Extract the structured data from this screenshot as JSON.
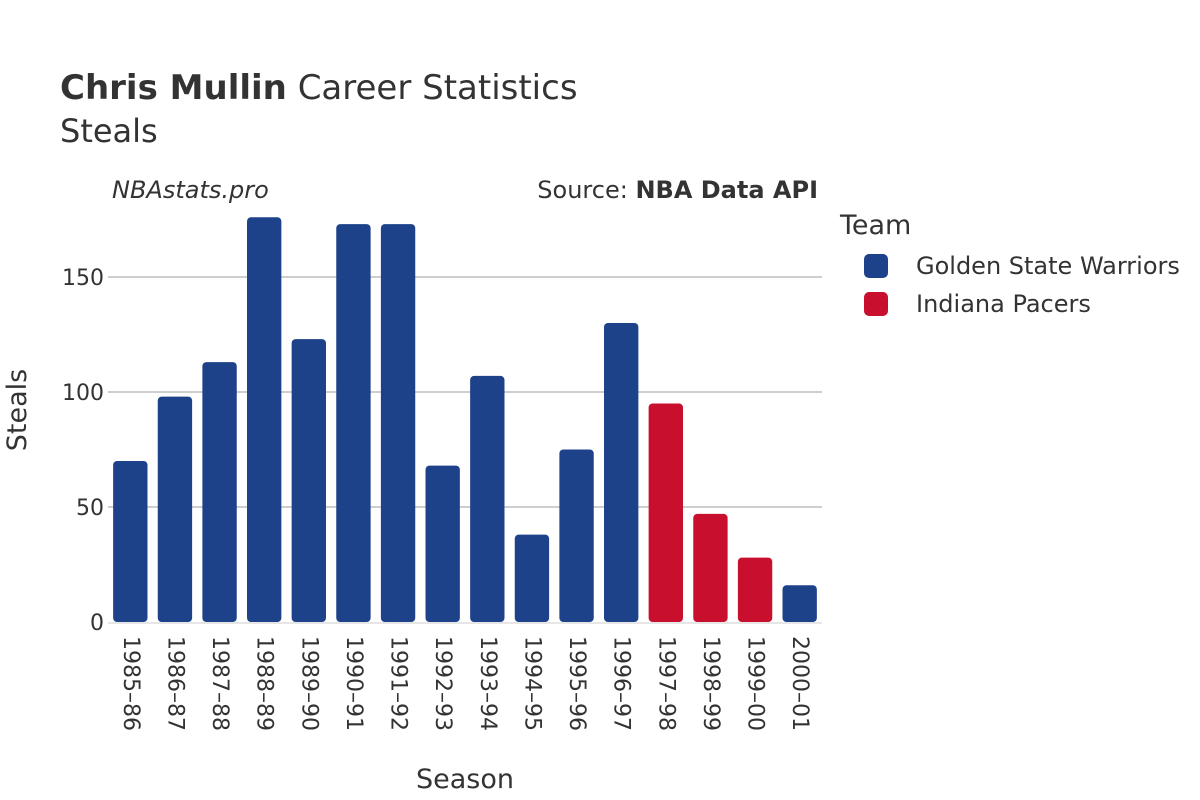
{
  "header": {
    "title_bold": "Chris Mullin",
    "title_rest": "Career Statistics",
    "subtitle": "Steals",
    "watermark": "NBAstats.pro",
    "source_prefix": "Source: ",
    "source_name": "NBA Data API"
  },
  "legend": {
    "title": "Team",
    "items": [
      {
        "label": "Golden State Warriors",
        "color": "#1d428a"
      },
      {
        "label": "Indiana Pacers",
        "color": "#c8102e"
      }
    ]
  },
  "chart_data": {
    "type": "bar",
    "title": "Chris Mullin Career Statistics",
    "subtitle": "Steals",
    "xlabel": "Season",
    "ylabel": "Steals",
    "ylim": [
      0,
      180
    ],
    "yticks": [
      0,
      50,
      100,
      150
    ],
    "grid": true,
    "legend_position": "right",
    "categories": [
      "1985–86",
      "1986–87",
      "1987–88",
      "1988–89",
      "1989–90",
      "1990–91",
      "1991–92",
      "1992–93",
      "1993–94",
      "1994–95",
      "1995–96",
      "1996–97",
      "1997–98",
      "1998–99",
      "1999–00",
      "2000–01"
    ],
    "values": [
      70,
      98,
      113,
      176,
      123,
      173,
      173,
      68,
      107,
      38,
      75,
      130,
      95,
      47,
      28,
      16
    ],
    "teams": [
      "Golden State Warriors",
      "Golden State Warriors",
      "Golden State Warriors",
      "Golden State Warriors",
      "Golden State Warriors",
      "Golden State Warriors",
      "Golden State Warriors",
      "Golden State Warriors",
      "Golden State Warriors",
      "Golden State Warriors",
      "Golden State Warriors",
      "Golden State Warriors",
      "Indiana Pacers",
      "Indiana Pacers",
      "Indiana Pacers",
      "Golden State Warriors"
    ]
  }
}
